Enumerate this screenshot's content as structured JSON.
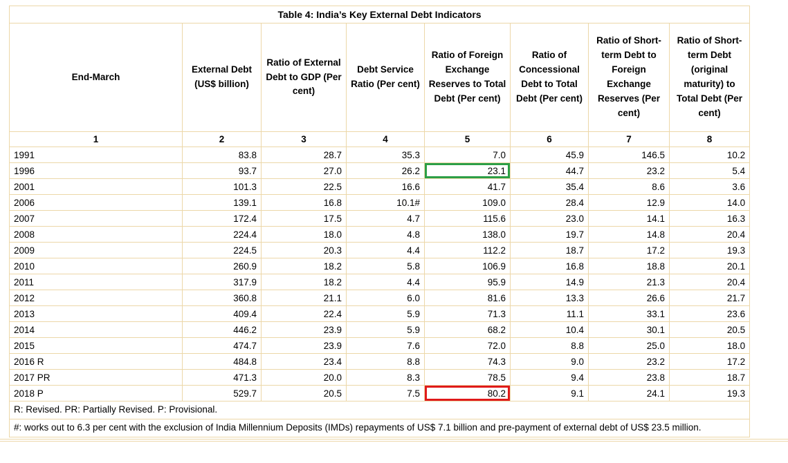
{
  "title": "Table 4: India’s Key External Debt Indicators",
  "table": {
    "columns": [
      {
        "number": "1",
        "label": "End-March"
      },
      {
        "number": "2",
        "label": "External Debt (US$ billion)"
      },
      {
        "number": "3",
        "label": "Ratio of External Debt to GDP (Per cent)"
      },
      {
        "number": "4",
        "label": "Debt Service Ratio (Per cent)"
      },
      {
        "number": "5",
        "label": "Ratio of Foreign Exchange Reserves to Total Debt (Per cent)"
      },
      {
        "number": "6",
        "label": "Ratio of Concessional Debt to Total Debt (Per cent)"
      },
      {
        "number": "7",
        "label": "Ratio of Short-term Debt to Foreign Exchange Reserves (Per cent)"
      },
      {
        "number": "8",
        "label": "Ratio of Short-term Debt (original maturity) to Total Debt (Per cent)"
      }
    ],
    "rows": [
      {
        "year": "1991",
        "values": [
          "83.8",
          "28.7",
          "35.3",
          "7.0",
          "45.9",
          "146.5",
          "10.2"
        ]
      },
      {
        "year": "1996",
        "values": [
          "93.7",
          "27.0",
          "26.2",
          "23.1",
          "44.7",
          "23.2",
          "5.4"
        ]
      },
      {
        "year": "2001",
        "values": [
          "101.3",
          "22.5",
          "16.6",
          "41.7",
          "35.4",
          "8.6",
          "3.6"
        ]
      },
      {
        "year": "2006",
        "values": [
          "139.1",
          "16.8",
          "10.1#",
          "109.0",
          "28.4",
          "12.9",
          "14.0"
        ]
      },
      {
        "year": "2007",
        "values": [
          "172.4",
          "17.5",
          "4.7",
          "115.6",
          "23.0",
          "14.1",
          "16.3"
        ]
      },
      {
        "year": "2008",
        "values": [
          "224.4",
          "18.0",
          "4.8",
          "138.0",
          "19.7",
          "14.8",
          "20.4"
        ]
      },
      {
        "year": "2009",
        "values": [
          "224.5",
          "20.3",
          "4.4",
          "112.2",
          "18.7",
          "17.2",
          "19.3"
        ]
      },
      {
        "year": "2010",
        "values": [
          "260.9",
          "18.2",
          "5.8",
          "106.9",
          "16.8",
          "18.8",
          "20.1"
        ]
      },
      {
        "year": "2011",
        "values": [
          "317.9",
          "18.2",
          "4.4",
          "95.9",
          "14.9",
          "21.3",
          "20.4"
        ]
      },
      {
        "year": "2012",
        "values": [
          "360.8",
          "21.1",
          "6.0",
          "81.6",
          "13.3",
          "26.6",
          "21.7"
        ]
      },
      {
        "year": "2013",
        "values": [
          "409.4",
          "22.4",
          "5.9",
          "71.3",
          "11.1",
          "33.1",
          "23.6"
        ]
      },
      {
        "year": "2014",
        "values": [
          "446.2",
          "23.9",
          "5.9",
          "68.2",
          "10.4",
          "30.1",
          "20.5"
        ]
      },
      {
        "year": "2015",
        "values": [
          "474.7",
          "23.9",
          "7.6",
          "72.0",
          "8.8",
          "25.0",
          "18.0"
        ]
      },
      {
        "year": "2016 R",
        "values": [
          "484.8",
          "23.4",
          "8.8",
          "74.3",
          "9.0",
          "23.2",
          "17.2"
        ]
      },
      {
        "year": "2017 PR",
        "values": [
          "471.3",
          "20.0",
          "8.3",
          "78.5",
          "9.4",
          "23.8",
          "18.7"
        ]
      },
      {
        "year": "2018 P",
        "values": [
          "529.7",
          "20.5",
          "7.5",
          "80.2",
          "9.1",
          "24.1",
          "19.3"
        ]
      }
    ],
    "highlights": [
      {
        "row_index": 1,
        "value_index": 3,
        "color": "#2c9f46",
        "name": "green-highlight-cell"
      },
      {
        "row_index": 15,
        "value_index": 3,
        "color": "#e01a1a",
        "name": "red-highlight-cell"
      }
    ]
  },
  "footnotes": [
    "R: Revised. PR: Partially Revised. P: Provisional.",
    "#: works out to 6.3 per cent with the exclusion of India Millennium Deposits (IMDs) repayments of US$ 7.1 billion and pre-payment of external debt of US$ 23.5 million."
  ],
  "colors": {
    "table_border": "#ecd7a8",
    "highlight_green": "#2c9f46",
    "highlight_red": "#e01a1a"
  }
}
